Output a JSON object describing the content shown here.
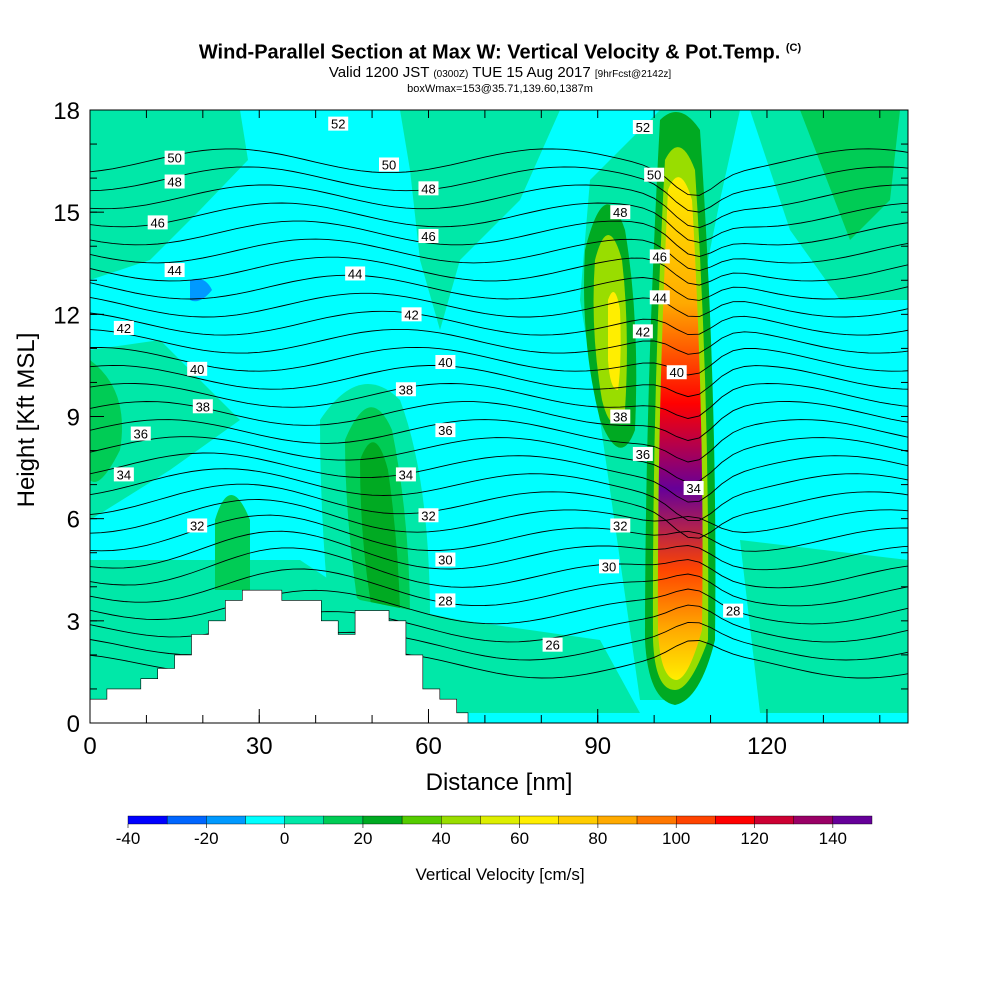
{
  "title": {
    "main": "Wind-Parallel Section at Max W: Vertical Velocity & Pot.Temp.",
    "copyright": "(C)",
    "valid_prefix": "Valid 1200 JST",
    "valid_utc": "(0300Z)",
    "valid_date": "TUE 15 Aug 2017",
    "forecast": "[9hrFcst@2142z]",
    "box": "boxWmax=153@35.71,139.60,1387m"
  },
  "chart_data": {
    "type": "heatmap",
    "xlabel": "Distance [nm]",
    "ylabel": "Height [Kft MSL]",
    "xlim": [
      0,
      145
    ],
    "ylim": [
      0,
      18
    ],
    "xticks": [
      0,
      30,
      60,
      90,
      120
    ],
    "yticks": [
      0,
      3,
      6,
      9,
      12,
      15,
      18
    ],
    "background_color": "#00ffff",
    "colorbar": {
      "label": "Vertical Velocity [cm/s]",
      "tick_labels": [
        "-40",
        "-20",
        "0",
        "20",
        "40",
        "60",
        "80",
        "100",
        "120",
        "140"
      ],
      "bins": [
        -40,
        -30,
        -20,
        -10,
        0,
        10,
        20,
        30,
        40,
        50,
        60,
        70,
        80,
        90,
        100,
        110,
        120,
        130,
        140,
        150
      ],
      "colors": [
        "#0000ff",
        "#0066ff",
        "#0099ff",
        "#00ffff",
        "#00e8a8",
        "#00cc55",
        "#00aa22",
        "#55cc00",
        "#99dd00",
        "#ddee00",
        "#ffee00",
        "#ffcc00",
        "#ffaa00",
        "#ff7700",
        "#ff4400",
        "#ff0000",
        "#cc0033",
        "#990066",
        "#660099"
      ]
    },
    "terrain": [
      [
        0,
        0.7
      ],
      [
        3,
        0.7
      ],
      [
        3,
        1.0
      ],
      [
        9,
        1.0
      ],
      [
        9,
        1.3
      ],
      [
        12,
        1.3
      ],
      [
        12,
        1.6
      ],
      [
        15,
        1.6
      ],
      [
        15,
        2.0
      ],
      [
        18,
        2.0
      ],
      [
        18,
        2.6
      ],
      [
        21,
        2.6
      ],
      [
        21,
        3.0
      ],
      [
        24,
        3.0
      ],
      [
        24,
        3.6
      ],
      [
        27,
        3.6
      ],
      [
        27,
        3.9
      ],
      [
        34,
        3.9
      ],
      [
        34,
        3.6
      ],
      [
        41,
        3.6
      ],
      [
        41,
        3.0
      ],
      [
        44,
        3.0
      ],
      [
        44,
        2.6
      ],
      [
        47,
        2.6
      ],
      [
        47,
        3.3
      ],
      [
        53,
        3.3
      ],
      [
        53,
        3.0
      ],
      [
        56,
        3.0
      ],
      [
        56,
        2.0
      ],
      [
        59,
        2.0
      ],
      [
        59,
        1.0
      ],
      [
        62,
        1.0
      ],
      [
        62,
        0.7
      ],
      [
        65,
        0.7
      ],
      [
        65,
        0.3
      ],
      [
        67,
        0.3
      ],
      [
        67,
        0
      ]
    ],
    "theta_labels": [
      {
        "text": "52",
        "x": 44,
        "y": 17.6
      },
      {
        "text": "52",
        "x": 98,
        "y": 17.5
      },
      {
        "text": "50",
        "x": 15,
        "y": 16.6
      },
      {
        "text": "50",
        "x": 53,
        "y": 16.4
      },
      {
        "text": "50",
        "x": 100,
        "y": 16.1
      },
      {
        "text": "48",
        "x": 15,
        "y": 15.9
      },
      {
        "text": "48",
        "x": 60,
        "y": 15.7
      },
      {
        "text": "48",
        "x": 94,
        "y": 15.0
      },
      {
        "text": "46",
        "x": 12,
        "y": 14.7
      },
      {
        "text": "46",
        "x": 60,
        "y": 14.3
      },
      {
        "text": "46",
        "x": 101,
        "y": 13.7
      },
      {
        "text": "44",
        "x": 15,
        "y": 13.3
      },
      {
        "text": "44",
        "x": 47,
        "y": 13.2
      },
      {
        "text": "44",
        "x": 101,
        "y": 12.5
      },
      {
        "text": "42",
        "x": 6,
        "y": 11.6
      },
      {
        "text": "42",
        "x": 57,
        "y": 12.0
      },
      {
        "text": "42",
        "x": 98,
        "y": 11.5
      },
      {
        "text": "40",
        "x": 19,
        "y": 10.4
      },
      {
        "text": "40",
        "x": 63,
        "y": 10.6
      },
      {
        "text": "40",
        "x": 104,
        "y": 10.3
      },
      {
        "text": "38",
        "x": 20,
        "y": 9.3
      },
      {
        "text": "38",
        "x": 56,
        "y": 9.8
      },
      {
        "text": "38",
        "x": 94,
        "y": 9.0
      },
      {
        "text": "36",
        "x": 9,
        "y": 8.5
      },
      {
        "text": "36",
        "x": 63,
        "y": 8.6
      },
      {
        "text": "36",
        "x": 98,
        "y": 7.9
      },
      {
        "text": "34",
        "x": 6,
        "y": 7.3
      },
      {
        "text": "34",
        "x": 56,
        "y": 7.3
      },
      {
        "text": "34",
        "x": 107,
        "y": 6.9
      },
      {
        "text": "32",
        "x": 19,
        "y": 5.8
      },
      {
        "text": "32",
        "x": 60,
        "y": 6.1
      },
      {
        "text": "32",
        "x": 94,
        "y": 5.8
      },
      {
        "text": "30",
        "x": 63,
        "y": 4.8
      },
      {
        "text": "30",
        "x": 92,
        "y": 4.6
      },
      {
        "text": "28",
        "x": 63,
        "y": 3.6
      },
      {
        "text": "28",
        "x": 114,
        "y": 3.3
      },
      {
        "text": "26",
        "x": 82,
        "y": 2.3
      }
    ]
  }
}
